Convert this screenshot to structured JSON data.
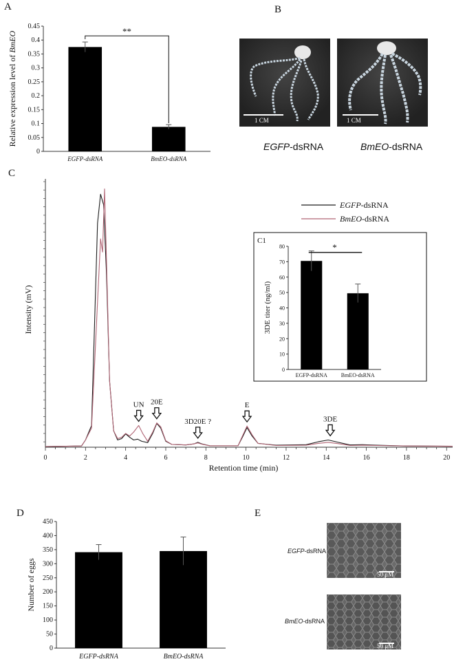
{
  "panels": {
    "A": "A",
    "B": "B",
    "C": "C",
    "D": "D",
    "E": "E"
  },
  "chart_data": [
    {
      "id": "A",
      "type": "bar",
      "categories": [
        "EGFP-dsRNA",
        "BmEO-dsRNA"
      ],
      "values": [
        0.375,
        0.088
      ],
      "errors": [
        0.018,
        0.008
      ],
      "ylabel_prefix": "Relative expression level of ",
      "ylabel_gene": "BmEO",
      "ylim": [
        0,
        0.45
      ],
      "yticks": [
        "0",
        "0.05",
        "0.1",
        "0.15",
        "0.2",
        "0.25",
        "0.3",
        "0.35",
        "0.4",
        "0.45"
      ],
      "significance": "**",
      "bar_color": "#000000"
    },
    {
      "id": "C",
      "type": "line",
      "xlabel": "Retention time (min)",
      "ylabel": "Intensity (mV)",
      "xlim": [
        0,
        20.3
      ],
      "xticks": [
        "0",
        "2",
        "4",
        "6",
        "8",
        "10",
        "12",
        "14",
        "16",
        "18",
        "20"
      ],
      "series": [
        {
          "name_italic": "EGFP",
          "name_rest": "-dsRNA",
          "color": "#1a1a1a",
          "points": [
            [
              0,
              0
            ],
            [
              1.8,
              0.2
            ],
            [
              2.0,
              2.5
            ],
            [
              2.3,
              8
            ],
            [
              2.6,
              85
            ],
            [
              2.75,
              96
            ],
            [
              2.9,
              92
            ],
            [
              3.05,
              65
            ],
            [
              3.2,
              25
            ],
            [
              3.4,
              6
            ],
            [
              3.6,
              2.5
            ],
            [
              3.8,
              3
            ],
            [
              4.0,
              4.8
            ],
            [
              4.2,
              3.5
            ],
            [
              4.4,
              2.5
            ],
            [
              4.6,
              2.8
            ],
            [
              4.8,
              2
            ],
            [
              5.1,
              1.5
            ],
            [
              5.35,
              5
            ],
            [
              5.55,
              8.8
            ],
            [
              5.75,
              7
            ],
            [
              6.0,
              2
            ],
            [
              6.3,
              0.8
            ],
            [
              7.0,
              0.6
            ],
            [
              7.4,
              1
            ],
            [
              7.6,
              1.6
            ],
            [
              7.8,
              1
            ],
            [
              8.2,
              0.3
            ],
            [
              9.6,
              0.3
            ],
            [
              9.85,
              4
            ],
            [
              10.05,
              7.2
            ],
            [
              10.3,
              4
            ],
            [
              10.6,
              1.2
            ],
            [
              11.5,
              0.5
            ],
            [
              13.0,
              0.7
            ],
            [
              13.6,
              1.8
            ],
            [
              14.1,
              2.5
            ],
            [
              14.6,
              1.6
            ],
            [
              15.2,
              0.6
            ],
            [
              15.8,
              0.7
            ],
            [
              16.5,
              0.5
            ],
            [
              18,
              0.2
            ],
            [
              20.3,
              0.1
            ]
          ]
        },
        {
          "name_italic": "BmEO",
          "name_rest": "-dsRNA",
          "color": "#b06474",
          "points": [
            [
              0,
              0
            ],
            [
              1.8,
              0.2
            ],
            [
              2.0,
              2.5
            ],
            [
              2.3,
              7
            ],
            [
              2.6,
              55
            ],
            [
              2.75,
              79
            ],
            [
              2.85,
              74
            ],
            [
              2.95,
              98
            ],
            [
              3.05,
              70
            ],
            [
              3.2,
              25
            ],
            [
              3.4,
              6
            ],
            [
              3.6,
              3
            ],
            [
              3.8,
              3.5
            ],
            [
              4.0,
              5
            ],
            [
              4.2,
              4
            ],
            [
              4.4,
              5.5
            ],
            [
              4.65,
              8
            ],
            [
              4.85,
              5
            ],
            [
              5.1,
              2
            ],
            [
              5.35,
              5.5
            ],
            [
              5.55,
              9
            ],
            [
              5.75,
              7.5
            ],
            [
              6.0,
              2.2
            ],
            [
              6.3,
              0.8
            ],
            [
              7.0,
              0.6
            ],
            [
              7.4,
              1
            ],
            [
              7.6,
              1.4
            ],
            [
              7.8,
              0.9
            ],
            [
              8.2,
              0.3
            ],
            [
              9.6,
              0.3
            ],
            [
              9.85,
              4.5
            ],
            [
              10.05,
              7.8
            ],
            [
              10.3,
              4.5
            ],
            [
              10.6,
              1.2
            ],
            [
              11.5,
              0.4
            ],
            [
              13.0,
              0.5
            ],
            [
              13.6,
              1.2
            ],
            [
              14.1,
              1.6
            ],
            [
              14.6,
              1.1
            ],
            [
              15.2,
              0.4
            ],
            [
              15.8,
              0.5
            ],
            [
              16.5,
              0.4
            ],
            [
              18,
              0.2
            ],
            [
              20.3,
              0.1
            ]
          ]
        }
      ],
      "annotations": [
        {
          "label": "UN",
          "x": 4.65
        },
        {
          "label": "20E",
          "x": 5.55
        },
        {
          "label": "3D20E ?",
          "x": 7.6
        },
        {
          "label": "E",
          "x": 10.05
        },
        {
          "label": "3DE",
          "x": 14.2
        }
      ]
    },
    {
      "id": "C1",
      "type": "bar",
      "label": "C1",
      "categories": [
        "EGFP-dsRNA",
        "BmEO-dsRNA"
      ],
      "values": [
        70.5,
        49.5
      ],
      "errors": [
        6.5,
        6.0
      ],
      "ylabel": "3DE titer (ng/ml)",
      "ylim": [
        0,
        80
      ],
      "yticks": [
        "0",
        "10",
        "20",
        "30",
        "40",
        "50",
        "60",
        "70",
        "80"
      ],
      "significance": "*",
      "bar_color": "#000000"
    },
    {
      "id": "D",
      "type": "bar",
      "categories": [
        "EGFP-dsRNA",
        "BmEO-dsRNA"
      ],
      "values": [
        341,
        345
      ],
      "errors": [
        27,
        50
      ],
      "ylabel": "Number of eggs",
      "ylim": [
        0,
        450
      ],
      "yticks": [
        "0",
        "50",
        "100",
        "150",
        "200",
        "250",
        "300",
        "350",
        "400",
        "450"
      ],
      "bar_color": "#000000"
    }
  ],
  "photos_B": {
    "labels": [
      {
        "italic": "EGFP",
        "rest": "-dsRNA"
      },
      {
        "italic": "BmEO",
        "rest": "-dsRNA"
      }
    ],
    "scale": "1 CM"
  },
  "photos_E": {
    "labels": [
      {
        "italic": "EGFP",
        "rest": "-dsRNA"
      },
      {
        "italic": "BmEO",
        "rest": "-dsRNA"
      }
    ],
    "scale": "50 μM"
  }
}
